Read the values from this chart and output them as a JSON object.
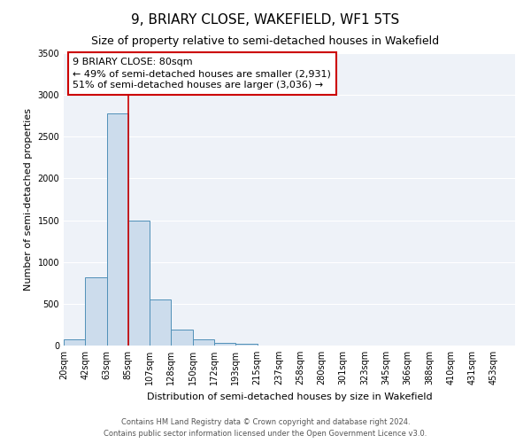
{
  "title": "9, BRIARY CLOSE, WAKEFIELD, WF1 5TS",
  "subtitle": "Size of property relative to semi-detached houses in Wakefield",
  "bar_labels": [
    "20sqm",
    "42sqm",
    "63sqm",
    "85sqm",
    "107sqm",
    "128sqm",
    "150sqm",
    "172sqm",
    "193sqm",
    "215sqm",
    "237sqm",
    "258sqm",
    "280sqm",
    "301sqm",
    "323sqm",
    "345sqm",
    "366sqm",
    "388sqm",
    "410sqm",
    "431sqm",
    "453sqm"
  ],
  "bar_values": [
    70,
    820,
    2780,
    1500,
    550,
    190,
    70,
    35,
    20,
    0,
    0,
    0,
    0,
    0,
    0,
    0,
    0,
    0,
    0,
    0,
    0
  ],
  "bar_color": "#ccdcec",
  "bar_edge_color": "#5090b8",
  "bar_edge_width": 0.7,
  "vline_x_index": 3,
  "vline_color": "#cc0000",
  "vline_linewidth": 1.2,
  "ylim": [
    0,
    3500
  ],
  "ylabel": "Number of semi-detached properties",
  "xlabel": "Distribution of semi-detached houses by size in Wakefield",
  "annotation_title": "9 BRIARY CLOSE: 80sqm",
  "annotation_line1": "← 49% of semi-detached houses are smaller (2,931)",
  "annotation_line2": "51% of semi-detached houses are larger (3,036) →",
  "annotation_box_facecolor": "#ffffff",
  "annotation_box_edgecolor": "#cc0000",
  "footer_line1": "Contains HM Land Registry data © Crown copyright and database right 2024.",
  "footer_line2": "Contains public sector information licensed under the Open Government Licence v3.0.",
  "title_fontsize": 11,
  "subtitle_fontsize": 9,
  "axis_label_fontsize": 8,
  "tick_fontsize": 7,
  "annotation_fontsize": 8,
  "footer_fontsize": 6,
  "fig_facecolor": "#ffffff",
  "plot_facecolor": "#eef2f8",
  "grid_color": "#ffffff",
  "yticks": [
    0,
    500,
    1000,
    1500,
    2000,
    2500,
    3000,
    3500
  ]
}
